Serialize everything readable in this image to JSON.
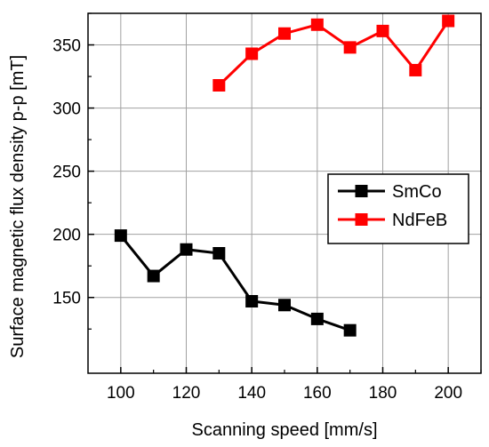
{
  "chart_data": {
    "type": "line",
    "title": "",
    "xlabel": "Scanning speed [mm/s]",
    "ylabel": "Surface magnetic flux density p-p [mT]",
    "xlim": [
      90,
      210
    ],
    "ylim": [
      90,
      375
    ],
    "xticks": [
      100,
      120,
      140,
      160,
      180,
      200
    ],
    "yticks": [
      150,
      200,
      250,
      300,
      350
    ],
    "grid": true,
    "legend_position": "right-middle",
    "series": [
      {
        "name": "SmCo",
        "color": "#000000",
        "marker": "square",
        "x": [
          100,
          110,
          120,
          130,
          140,
          150,
          160,
          170
        ],
        "y": [
          199,
          167,
          188,
          185,
          147,
          144,
          133,
          124
        ]
      },
      {
        "name": "NdFeB",
        "color": "#ff0000",
        "marker": "square",
        "x": [
          130,
          140,
          150,
          160,
          170,
          180,
          190,
          200
        ],
        "y": [
          318,
          343,
          359,
          366,
          348,
          361,
          330,
          369
        ]
      }
    ]
  }
}
